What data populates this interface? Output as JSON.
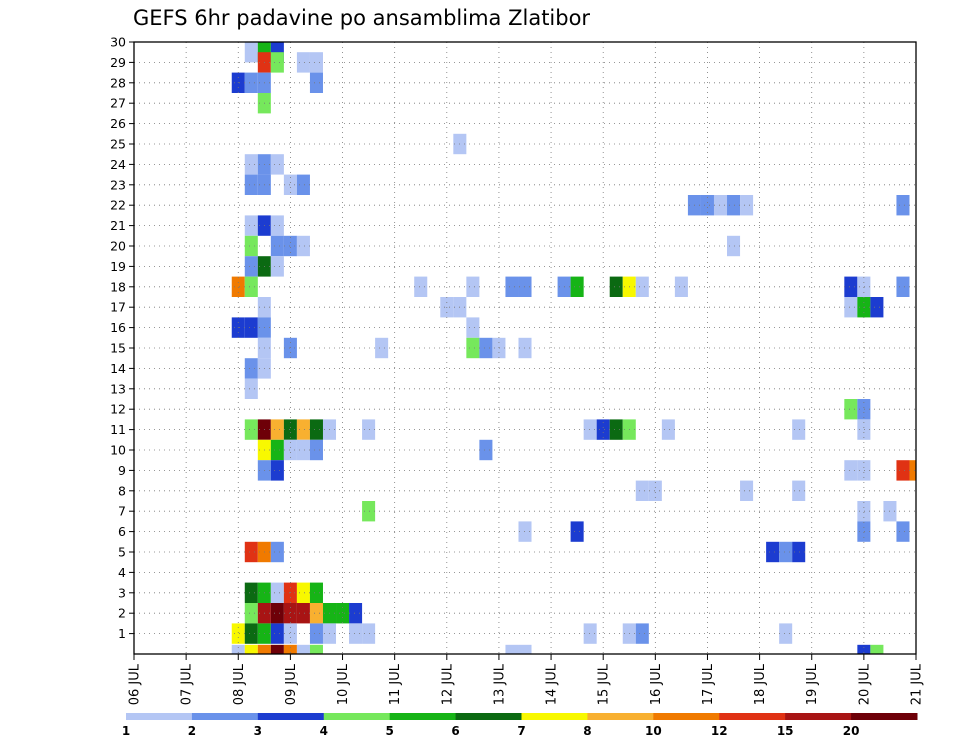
{
  "chart_data": {
    "type": "heatmap",
    "title": "GEFS 6hr padavine po ansamblima Zlatibor",
    "x_ticks": [
      "06 JUL",
      "07 JUL",
      "08 JUL",
      "09 JUL",
      "10 JUL",
      "11 JUL",
      "12 JUL",
      "13 JUL",
      "14 JUL",
      "15 JUL",
      "16 JUL",
      "17 JUL",
      "18 JUL",
      "19 JUL",
      "20 JUL",
      "21 JUL"
    ],
    "x_range_days": [
      "06 JUL",
      "21 JUL"
    ],
    "x_step": "6hr",
    "y_ticks": [
      1,
      2,
      3,
      4,
      5,
      6,
      7,
      8,
      9,
      10,
      11,
      12,
      13,
      14,
      15,
      16,
      17,
      18,
      19,
      20,
      21,
      22,
      23,
      24,
      25,
      26,
      27,
      28,
      29,
      30
    ],
    "y_range": [
      0,
      30
    ],
    "grid": true,
    "colorbar": {
      "labels": [
        "1",
        "2",
        "3",
        "4",
        "5",
        "6",
        "7",
        "8",
        "10",
        "12",
        "15",
        "20"
      ],
      "colors": [
        "#b4c6f4",
        "#6a92ea",
        "#1c3cd0",
        "#76e85c",
        "#16b416",
        "#0b6a12",
        "#f8f800",
        "#f8b030",
        "#f07a00",
        "#e03214",
        "#a81414",
        "#6e0008"
      ]
    },
    "cells": [
      [
        8.25,
        30,
        1
      ],
      [
        8.5,
        30,
        5
      ],
      [
        8.75,
        30,
        3
      ],
      [
        8.5,
        29,
        10
      ],
      [
        8.75,
        29,
        4
      ],
      [
        9.25,
        29,
        1
      ],
      [
        9.5,
        29,
        1
      ],
      [
        8,
        28,
        3
      ],
      [
        8.25,
        28,
        2
      ],
      [
        8.5,
        28,
        2
      ],
      [
        9.5,
        28,
        2
      ],
      [
        8.5,
        27,
        4
      ],
      [
        12.25,
        25,
        1
      ],
      [
        8.25,
        24,
        1
      ],
      [
        8.5,
        24,
        2
      ],
      [
        8.75,
        24,
        1
      ],
      [
        8.25,
        23,
        2
      ],
      [
        8.5,
        23,
        2
      ],
      [
        9,
        23,
        1
      ],
      [
        9.25,
        23,
        2
      ],
      [
        16.75,
        22,
        2
      ],
      [
        17,
        22,
        2
      ],
      [
        17.25,
        22,
        1
      ],
      [
        17.5,
        22,
        2
      ],
      [
        17.75,
        22,
        1
      ],
      [
        20.75,
        22,
        2
      ],
      [
        8.25,
        21,
        1
      ],
      [
        8.5,
        21,
        3
      ],
      [
        8.75,
        21,
        1
      ],
      [
        8.25,
        20,
        4
      ],
      [
        8.75,
        20,
        2
      ],
      [
        9,
        20,
        2
      ],
      [
        9.25,
        20,
        1
      ],
      [
        17.5,
        20,
        1
      ],
      [
        8.25,
        19,
        2
      ],
      [
        8.5,
        19,
        6
      ],
      [
        8.75,
        19,
        1
      ],
      [
        8,
        18,
        9
      ],
      [
        8.25,
        18,
        4
      ],
      [
        11.5,
        18,
        1
      ],
      [
        12.5,
        18,
        1
      ],
      [
        13.25,
        18,
        2
      ],
      [
        13.5,
        18,
        2
      ],
      [
        14.25,
        18,
        2
      ],
      [
        14.5,
        18,
        5
      ],
      [
        15.25,
        18,
        6
      ],
      [
        15.5,
        18,
        7
      ],
      [
        15.75,
        18,
        1
      ],
      [
        16.5,
        18,
        1
      ],
      [
        19.75,
        18,
        3
      ],
      [
        20,
        18,
        1
      ],
      [
        20.75,
        18,
        2
      ],
      [
        8.5,
        17,
        1
      ],
      [
        12,
        17,
        1
      ],
      [
        12.25,
        17,
        1
      ],
      [
        19.75,
        17,
        1
      ],
      [
        20,
        17,
        5
      ],
      [
        20.25,
        17,
        3
      ],
      [
        8,
        16,
        3
      ],
      [
        8.25,
        16,
        3
      ],
      [
        8.5,
        16,
        2
      ],
      [
        12.5,
        16,
        1
      ],
      [
        8.5,
        15,
        1
      ],
      [
        9,
        15,
        2
      ],
      [
        10.75,
        15,
        1
      ],
      [
        12.5,
        15,
        4
      ],
      [
        12.75,
        15,
        2
      ],
      [
        13,
        15,
        1
      ],
      [
        13.5,
        15,
        1
      ],
      [
        8.25,
        14,
        2
      ],
      [
        8.5,
        14,
        1
      ],
      [
        8.25,
        13,
        1
      ],
      [
        19.75,
        12,
        4
      ],
      [
        20,
        12,
        2
      ],
      [
        8.25,
        11,
        4
      ],
      [
        8.5,
        11,
        12
      ],
      [
        8.75,
        11,
        8
      ],
      [
        9,
        11,
        6
      ],
      [
        9.25,
        11,
        8
      ],
      [
        9.5,
        11,
        6
      ],
      [
        9.75,
        11,
        1
      ],
      [
        10.5,
        11,
        1
      ],
      [
        14.75,
        11,
        1
      ],
      [
        15,
        11,
        3
      ],
      [
        15.25,
        11,
        6
      ],
      [
        15.5,
        11,
        4
      ],
      [
        16.25,
        11,
        1
      ],
      [
        18.75,
        11,
        1
      ],
      [
        20,
        11,
        1
      ],
      [
        8.5,
        10,
        7
      ],
      [
        8.75,
        10,
        5
      ],
      [
        9,
        10,
        1
      ],
      [
        9.25,
        10,
        1
      ],
      [
        9.5,
        10,
        2
      ],
      [
        12.75,
        10,
        2
      ],
      [
        8.5,
        9,
        2
      ],
      [
        8.75,
        9,
        3
      ],
      [
        19.75,
        9,
        1
      ],
      [
        20,
        9,
        1
      ],
      [
        20.75,
        9,
        10
      ],
      [
        21,
        9,
        9
      ],
      [
        15.75,
        8,
        1
      ],
      [
        16,
        8,
        1
      ],
      [
        17.75,
        8,
        1
      ],
      [
        18.75,
        8,
        1
      ],
      [
        10.5,
        7,
        4
      ],
      [
        20,
        7,
        1
      ],
      [
        20.5,
        7,
        1
      ],
      [
        13.5,
        6,
        1
      ],
      [
        14.5,
        6,
        3
      ],
      [
        20,
        6,
        2
      ],
      [
        20.75,
        6,
        2
      ],
      [
        8.25,
        5,
        10
      ],
      [
        8.5,
        5,
        9
      ],
      [
        8.75,
        5,
        2
      ],
      [
        18.25,
        5,
        3
      ],
      [
        18.5,
        5,
        2
      ],
      [
        18.75,
        5,
        3
      ],
      [
        8.25,
        3,
        6
      ],
      [
        8.5,
        3,
        5
      ],
      [
        8.75,
        3,
        1
      ],
      [
        9,
        3,
        10
      ],
      [
        9.25,
        3,
        7
      ],
      [
        9.5,
        3,
        5
      ],
      [
        8.25,
        2,
        4
      ],
      [
        8.5,
        2,
        11
      ],
      [
        8.75,
        2,
        12
      ],
      [
        9,
        2,
        11
      ],
      [
        9.25,
        2,
        11
      ],
      [
        9.5,
        2,
        8
      ],
      [
        9.75,
        2,
        5
      ],
      [
        10,
        2,
        5
      ],
      [
        10.25,
        2,
        3
      ],
      [
        8,
        1,
        7
      ],
      [
        8.25,
        1,
        6
      ],
      [
        8.5,
        1,
        5
      ],
      [
        8.75,
        1,
        3
      ],
      [
        9,
        1,
        1
      ],
      [
        9.5,
        1,
        2
      ],
      [
        9.75,
        1,
        1
      ],
      [
        10.25,
        1,
        1
      ],
      [
        10.5,
        1,
        1
      ],
      [
        14.75,
        1,
        1
      ],
      [
        15.5,
        1,
        1
      ],
      [
        15.75,
        1,
        2
      ],
      [
        18.5,
        1,
        1
      ],
      [
        8,
        0,
        1
      ],
      [
        8.25,
        0,
        7
      ],
      [
        8.5,
        0,
        9
      ],
      [
        8.75,
        0,
        12
      ],
      [
        9,
        0,
        9
      ],
      [
        9.25,
        0,
        1
      ],
      [
        9.5,
        0,
        4
      ],
      [
        13.25,
        0,
        1
      ],
      [
        13.5,
        0,
        1
      ],
      [
        20,
        0,
        3
      ],
      [
        20.25,
        0,
        4
      ]
    ]
  }
}
